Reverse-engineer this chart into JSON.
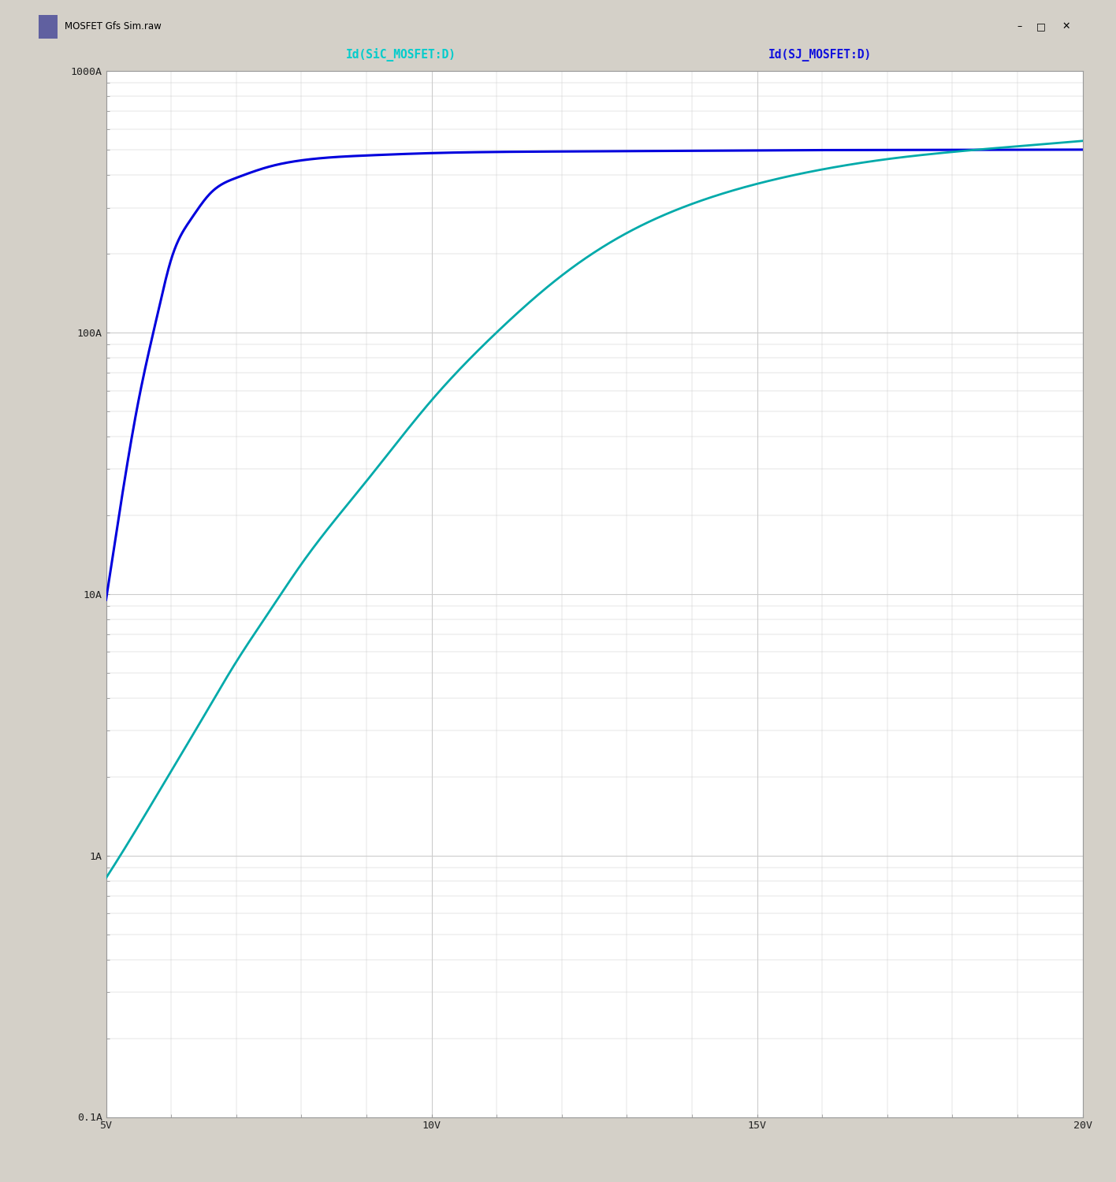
{
  "title": "MOSFET Gfs Sim.raw",
  "legend_label_1": "Id(SiC_MOSFET:D)",
  "legend_label_2": "Id(SJ_MOSFET:D)",
  "legend_color_1": "#00CCCC",
  "legend_color_2": "#1010DD",
  "curve1_color": "#0000DD",
  "curve2_color": "#00AAAA",
  "xmin": 5,
  "xmax": 20,
  "ymin_log": -1,
  "ymax_log": 3,
  "ytick_vals": [
    0.1,
    1,
    10,
    100,
    1000
  ],
  "ytick_labels": [
    "0.1A",
    "1A",
    "10A",
    "100A",
    "1000A"
  ],
  "xtick_vals": [
    5,
    10,
    15,
    20
  ],
  "xtick_labels": [
    "5V",
    "10V",
    "15V",
    "20V"
  ],
  "grid_color": "#CCCCCC",
  "bg_color": "#FFFFFF",
  "outer_bg": "#D4D0C8",
  "frame_bg": "#ECE9D8",
  "border_color": "#999999",
  "figsize": [
    14.16,
    15.0
  ],
  "dpi": 100,
  "sic_vgs": [
    5,
    5.2,
    5.5,
    5.8,
    6.0,
    6.3,
    6.6,
    7.0,
    7.5,
    8.0,
    9.0,
    10.0,
    12.0,
    15.0,
    18.0,
    20.0
  ],
  "sic_id": [
    9.5,
    20,
    55,
    120,
    190,
    270,
    340,
    390,
    430,
    455,
    475,
    485,
    492,
    497,
    499,
    500
  ],
  "sj_vgs": [
    5,
    5.5,
    6.0,
    6.5,
    7.0,
    7.5,
    8.0,
    9.0,
    10.0,
    11.0,
    12.0,
    13.0,
    14.0,
    15.0,
    16.0,
    17.0,
    18.0,
    19.0,
    20.0
  ],
  "sj_id": [
    0.82,
    1.3,
    2.1,
    3.4,
    5.5,
    8.5,
    13,
    27,
    55,
    100,
    165,
    240,
    310,
    370,
    420,
    460,
    490,
    515,
    540
  ]
}
